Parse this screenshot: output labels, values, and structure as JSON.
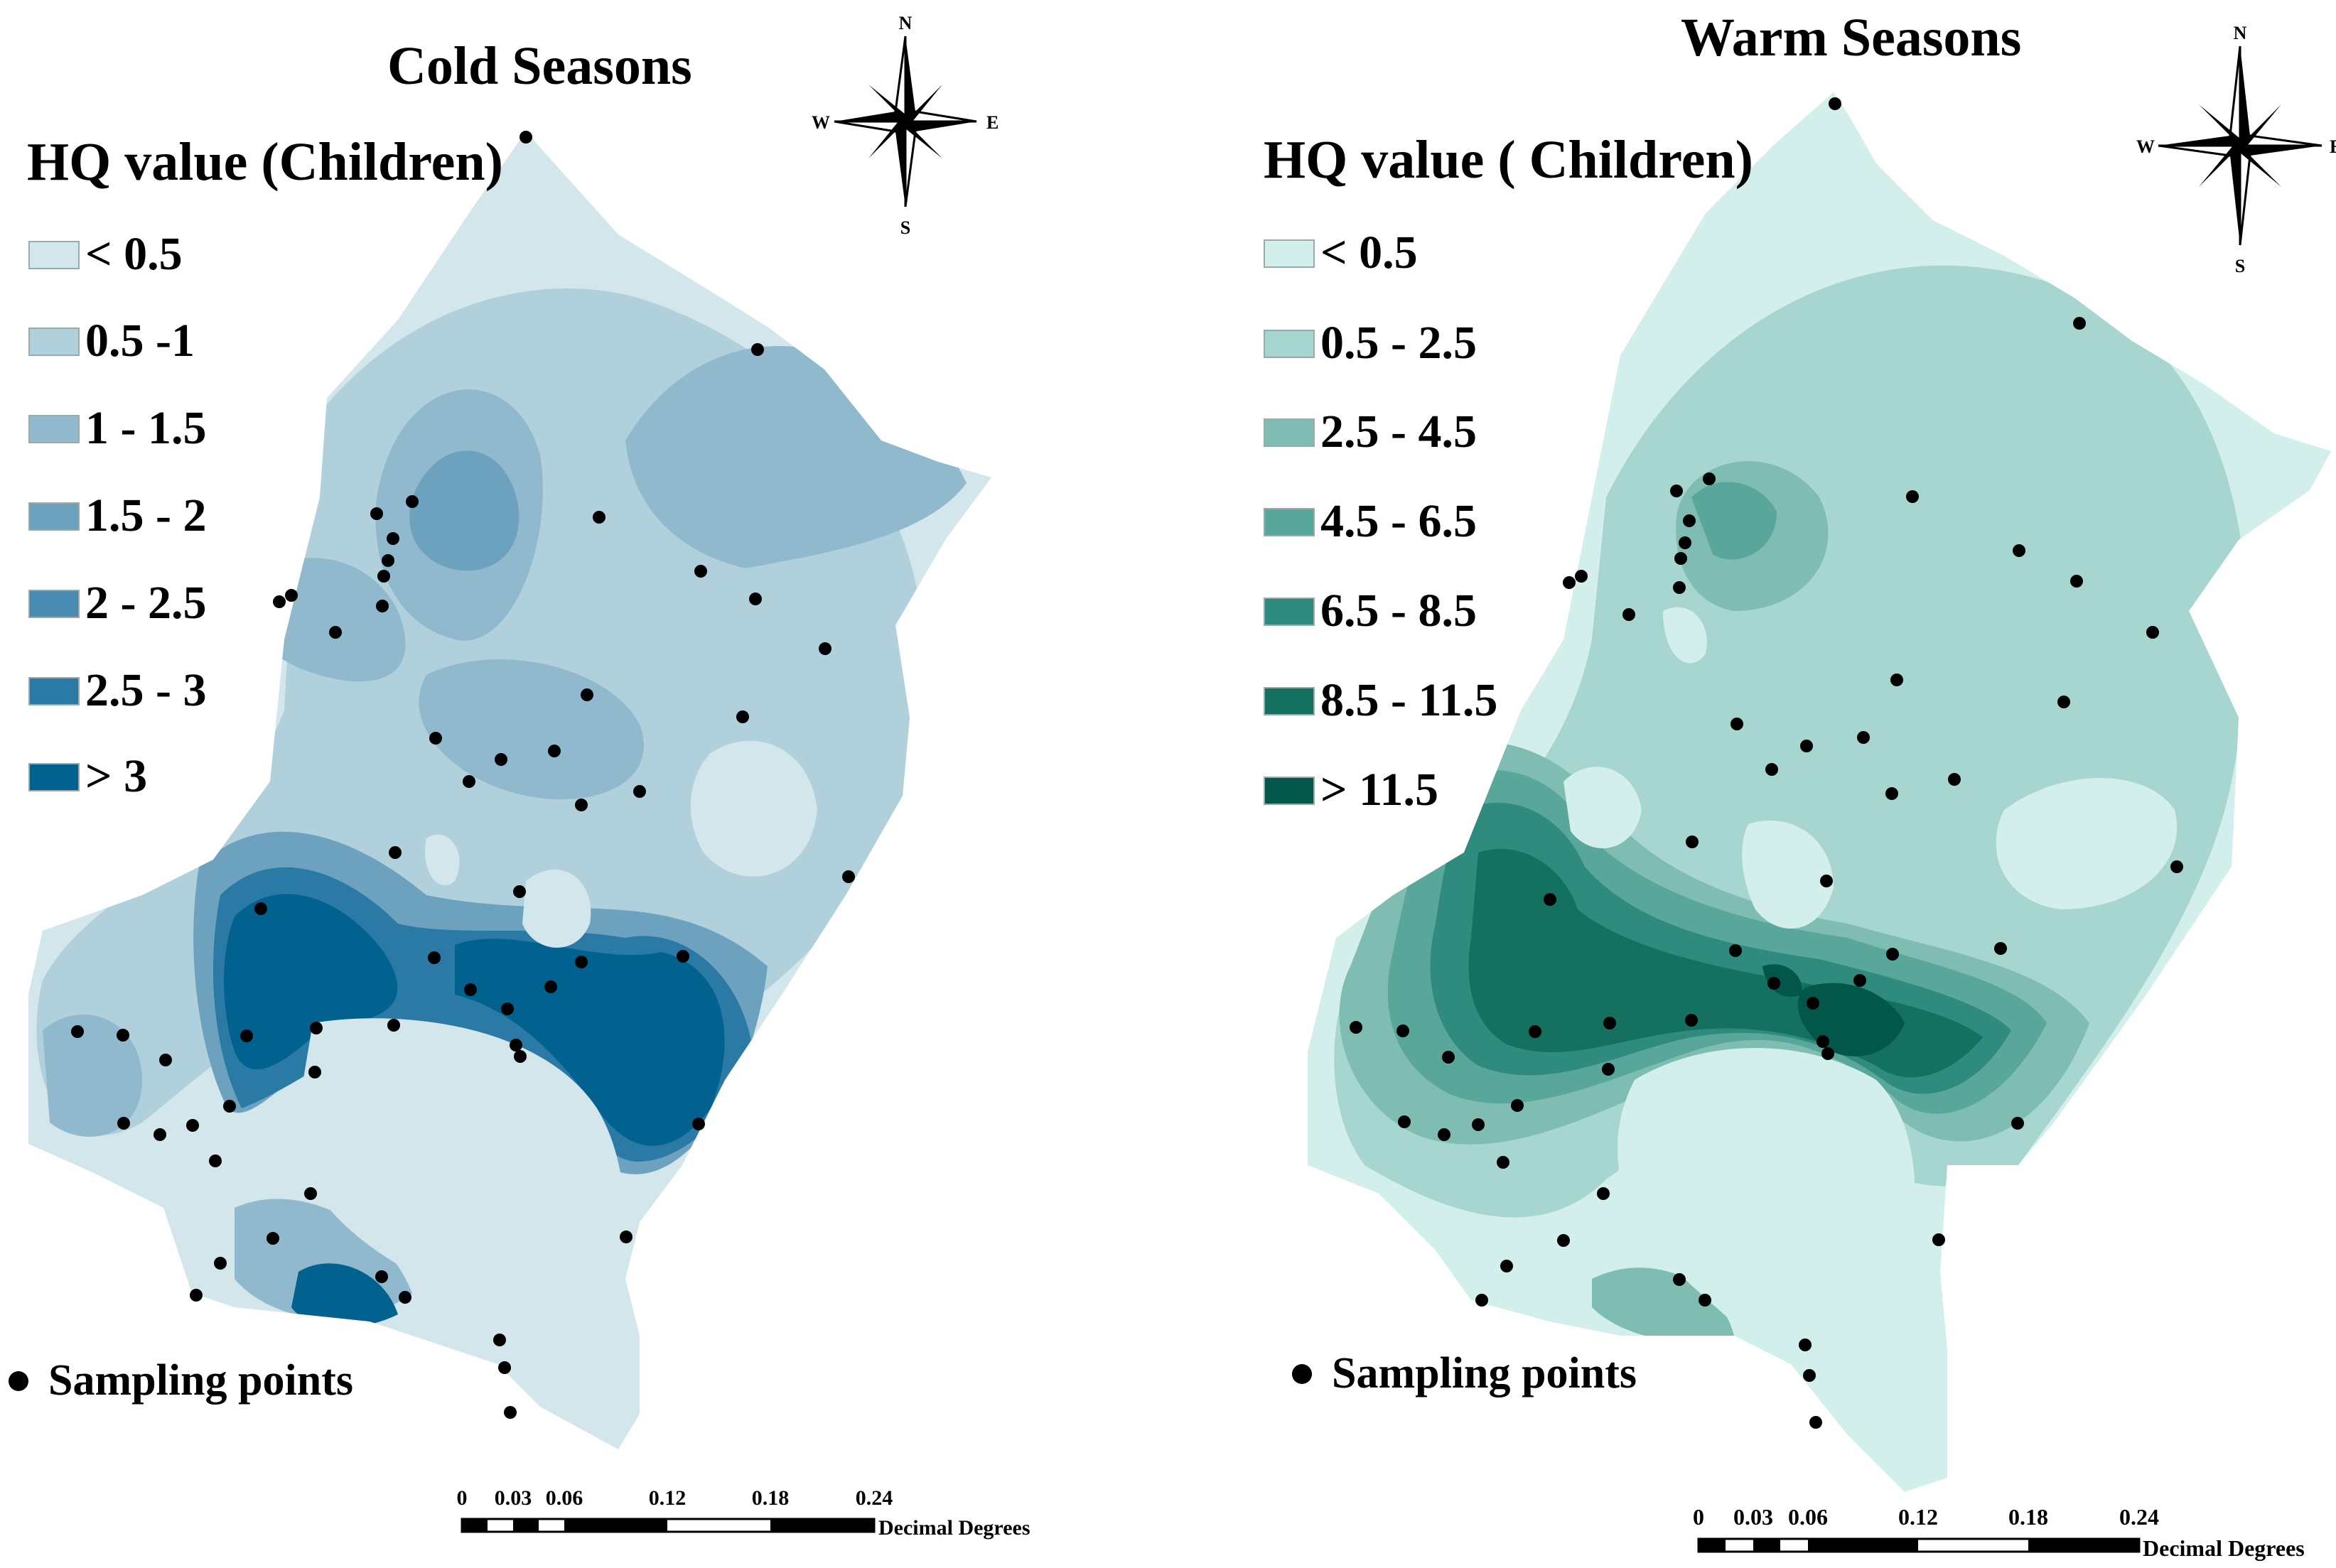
{
  "cold": {
    "title": "Cold Seasons",
    "legend_title": "HQ value (Children)",
    "legend": [
      {
        "label": "< 0.5",
        "color": "#d3e6ec"
      },
      {
        "label": "0.5 -1",
        "color": "#b0d0dc"
      },
      {
        "label": "1 - 1.5",
        "color": "#90b9cd"
      },
      {
        "label": "1.5 - 2",
        "color": "#6da2bf"
      },
      {
        "label": "2 - 2.5",
        "color": "#4a8cb1"
      },
      {
        "label": "2.5 - 3",
        "color": "#2b7aa6"
      },
      {
        "label": "> 3",
        "color": "#02628f"
      }
    ],
    "sampling_label": "Sampling points",
    "compass": {
      "n": "N",
      "e": "E",
      "s": "S",
      "w": "W"
    },
    "scale": {
      "ticks": [
        "0",
        "0.03",
        "0.06",
        "0.12",
        "0.18",
        "0.24"
      ],
      "unit": "Decimal Degrees"
    }
  },
  "warm": {
    "title": "Warm Seasons",
    "legend_title": "HQ value ( Children)",
    "legend": [
      {
        "label": "< 0.5",
        "color": "#d2efec"
      },
      {
        "label": "0.5 - 2.5",
        "color": "#a6d6cf"
      },
      {
        "label": "2.5 - 4.5",
        "color": "#7fbdb3"
      },
      {
        "label": "4.5 - 6.5",
        "color": "#59a69a"
      },
      {
        "label": "6.5 - 8.5",
        "color": "#2e8b7d"
      },
      {
        "label": "8.5 - 11.5",
        "color": "#14705f"
      },
      {
        "label": "> 11.5",
        "color": "#03564a"
      }
    ],
    "sampling_label": "Sampling points",
    "compass": {
      "n": "N",
      "e": "E",
      "s": "S",
      "w": "W"
    },
    "scale": {
      "ticks": [
        "0",
        "0.03",
        "0.06",
        "0.12",
        "0.18",
        "0.24"
      ],
      "unit": "Decimal Degrees"
    }
  }
}
